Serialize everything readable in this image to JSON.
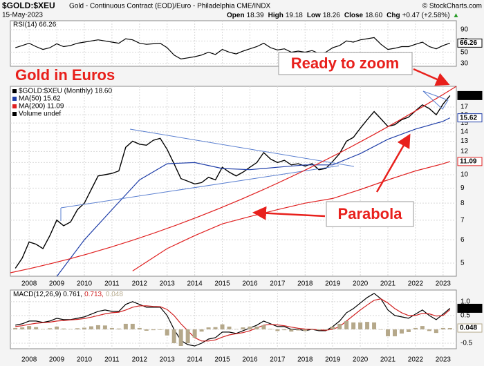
{
  "chart_data": {
    "type": "stock",
    "symbol": "$GOLD:$XEU",
    "description": "Gold - Continuous Contract (EOD)/Euro - Philadelphia CME/INDX",
    "credit": "© StockCharts.com",
    "date": "15-May-2023",
    "quote": [
      {
        "label": "Open",
        "value": "18.39"
      },
      {
        "label": "High",
        "value": "19.18"
      },
      {
        "label": "Low",
        "value": "18.26"
      },
      {
        "label": "Close",
        "value": "18.60"
      },
      {
        "label": "Chg",
        "value": "+0.47 (+2.58%)"
      }
    ],
    "annotations": {
      "title": "Gold in Euros",
      "zoom": "Ready to zoom",
      "parabola": "Parabola"
    },
    "xlim": [
      2007.32,
      2023.48
    ],
    "xticks": [
      2008,
      2009,
      2010,
      2011,
      2012,
      2013,
      2014,
      2015,
      2016,
      2017,
      2018,
      2019,
      2020,
      2021,
      2022,
      2023
    ],
    "x": [
      2007.5,
      2007.75,
      2008,
      2008.25,
      2008.5,
      2008.75,
      2009,
      2009.25,
      2009.5,
      2009.75,
      2010,
      2010.25,
      2010.5,
      2010.75,
      2011,
      2011.25,
      2011.5,
      2011.75,
      2012,
      2012.25,
      2012.5,
      2012.75,
      2013,
      2013.25,
      2013.5,
      2013.75,
      2014,
      2014.25,
      2014.5,
      2014.75,
      2015,
      2015.25,
      2015.5,
      2015.75,
      2016,
      2016.25,
      2016.5,
      2016.75,
      2017,
      2017.25,
      2017.5,
      2017.75,
      2018,
      2018.25,
      2018.5,
      2018.75,
      2019,
      2019.25,
      2019.5,
      2019.75,
      2020,
      2020.25,
      2020.5,
      2020.75,
      2021,
      2021.25,
      2021.5,
      2021.75,
      2022,
      2022.25,
      2022.5,
      2022.75,
      2023,
      2023.25
    ],
    "panels": {
      "rsi": {
        "title": "RSI(14) 66.26",
        "ylim": [
          25,
          106
        ],
        "yticks": [
          30,
          50,
          70,
          90
        ],
        "series": [
          {
            "color": "#000000",
            "last_label": "66.26",
            "label_fill": false,
            "values": [
              58,
              62,
              66,
              60,
              55,
              58,
              65,
              60,
              62,
              66,
              68,
              70,
              72,
              70,
              68,
              66,
              74,
              72,
              66,
              64,
              65,
              66,
              58,
              45,
              38,
              40,
              42,
              45,
              50,
              46,
              55,
              50,
              47,
              52,
              56,
              60,
              66,
              58,
              54,
              56,
              50,
              52,
              50,
              53,
              48,
              50,
              58,
              62,
              70,
              68,
              72,
              74,
              76,
              64,
              55,
              57,
              60,
              60,
              64,
              68,
              60,
              56,
              62,
              66.26
            ]
          }
        ]
      },
      "price": {
        "log": true,
        "ylim": [
          4.51,
          20.0
        ],
        "yticks": [
          5,
          6,
          7,
          8,
          9,
          10,
          11,
          12,
          13,
          14,
          15,
          16,
          17
        ],
        "legend_extra": "Volume undef",
        "series": [
          {
            "name": "$GOLD:$XEU (Monthly) 18.60",
            "color": "#000000",
            "last_label": "18.60",
            "label_fill": true,
            "values": [
              4.8,
              5.2,
              5.9,
              5.8,
              5.6,
              6.2,
              7.0,
              6.7,
              6.9,
              7.6,
              8.0,
              8.9,
              9.9,
              10.0,
              10.1,
              10.3,
              12.4,
              13.0,
              12.7,
              12.6,
              13.1,
              13.3,
              12.2,
              10.9,
              9.7,
              9.5,
              9.3,
              9.4,
              9.8,
              9.6,
              10.6,
              10.2,
              9.9,
              10.2,
              10.6,
              11.0,
              11.9,
              11.3,
              11.0,
              11.2,
              10.8,
              10.9,
              10.7,
              10.9,
              10.4,
              10.5,
              11.1,
              11.8,
              13.0,
              13.4,
              14.4,
              15.4,
              16.4,
              15.5,
              14.6,
              14.8,
              15.4,
              15.7,
              16.5,
              17.3,
              16.8,
              16.0,
              17.4,
              18.6
            ]
          },
          {
            "name": "MA(50) 15.62",
            "color": "#1f3ea8",
            "last_label": "15.62",
            "label_fill": false,
            "x": [
              2009,
              2010,
              2011,
              2012,
              2013,
              2014,
              2015,
              2016,
              2017,
              2018,
              2019,
              2020,
              2021,
              2022,
              2023,
              2023.25
            ],
            "values": [
              4.5,
              6.0,
              7.6,
              9.6,
              10.9,
              11.0,
              10.5,
              10.4,
              10.6,
              10.8,
              10.8,
              11.8,
              13.2,
              14.3,
              15.2,
              15.62
            ]
          },
          {
            "name": "MA(200) 11.09",
            "color": "#e02020",
            "last_label": "11.09",
            "label_fill": false,
            "x": [
              2011.75,
              2013,
              2014,
              2015,
              2016,
              2017,
              2018,
              2019,
              2020,
              2021,
              2022,
              2023,
              2023.25
            ],
            "values": [
              4.7,
              5.6,
              6.2,
              6.8,
              7.2,
              7.6,
              8.0,
              8.3,
              8.9,
              9.6,
              10.3,
              10.9,
              11.09
            ]
          }
        ]
      },
      "macd": {
        "title_parts": [
          "MACD(12,26,9) 0.761,",
          "0.713,",
          "0.048"
        ],
        "ylim": [
          -0.7,
          1.42
        ],
        "yticks": [
          {
            "value": 1,
            "label": "1.0"
          },
          {
            "value": 0.5,
            "label": "0.5"
          },
          {
            "value": 0,
            "label": "0.0"
          },
          {
            "value": -0.5,
            "label": "-0.5"
          }
        ],
        "series": [
          {
            "kind": "line",
            "color": "#000000",
            "last_label": "0.761",
            "label_fill": true,
            "values": [
              0.15,
              0.2,
              0.3,
              0.3,
              0.25,
              0.3,
              0.4,
              0.35,
              0.35,
              0.4,
              0.45,
              0.55,
              0.65,
              0.7,
              0.65,
              0.65,
              0.9,
              1.0,
              0.9,
              0.8,
              0.8,
              0.8,
              0.5,
              0.0,
              -0.4,
              -0.55,
              -0.6,
              -0.5,
              -0.35,
              -0.3,
              -0.1,
              -0.1,
              -0.15,
              -0.05,
              0.05,
              0.15,
              0.3,
              0.2,
              0.1,
              0.1,
              0.0,
              0.0,
              -0.05,
              0.0,
              -0.05,
              -0.05,
              0.1,
              0.3,
              0.6,
              0.75,
              0.95,
              1.15,
              1.3,
              1.1,
              0.7,
              0.5,
              0.45,
              0.4,
              0.55,
              0.7,
              0.5,
              0.35,
              0.55,
              0.761
            ]
          },
          {
            "kind": "line",
            "color": "#d02020",
            "values": [
              0.1,
              0.13,
              0.18,
              0.22,
              0.24,
              0.26,
              0.3,
              0.32,
              0.34,
              0.36,
              0.39,
              0.44,
              0.5,
              0.56,
              0.6,
              0.62,
              0.7,
              0.8,
              0.85,
              0.85,
              0.83,
              0.82,
              0.72,
              0.5,
              0.2,
              -0.05,
              -0.3,
              -0.42,
              -0.42,
              -0.38,
              -0.28,
              -0.2,
              -0.16,
              -0.12,
              -0.05,
              0.05,
              0.15,
              0.18,
              0.16,
              0.13,
              0.08,
              0.04,
              0.01,
              0.0,
              -0.02,
              -0.03,
              0.0,
              0.1,
              0.3,
              0.5,
              0.7,
              0.88,
              1.05,
              1.1,
              0.95,
              0.75,
              0.6,
              0.5,
              0.5,
              0.58,
              0.56,
              0.48,
              0.5,
              0.713
            ]
          },
          {
            "kind": "bars",
            "color": "#b5a88a",
            "last_label": "0.048",
            "label_fill": false,
            "values": [
              0.05,
              0.07,
              0.12,
              0.08,
              0.01,
              0.04,
              0.1,
              0.03,
              0.01,
              0.04,
              0.06,
              0.11,
              0.15,
              0.14,
              0.05,
              0.03,
              0.2,
              0.2,
              0.05,
              -0.05,
              -0.03,
              -0.02,
              -0.22,
              -0.5,
              -0.6,
              -0.5,
              -0.3,
              -0.08,
              0.07,
              0.08,
              0.18,
              0.1,
              0.01,
              0.07,
              0.1,
              0.1,
              0.15,
              0.02,
              -0.06,
              -0.03,
              -0.08,
              -0.04,
              -0.06,
              0.0,
              -0.03,
              -0.02,
              0.1,
              0.2,
              0.3,
              0.25,
              0.25,
              0.27,
              0.25,
              0.0,
              -0.25,
              -0.25,
              -0.15,
              -0.1,
              0.05,
              0.12,
              -0.06,
              -0.13,
              0.05,
              0.048
            ]
          }
        ]
      }
    }
  }
}
